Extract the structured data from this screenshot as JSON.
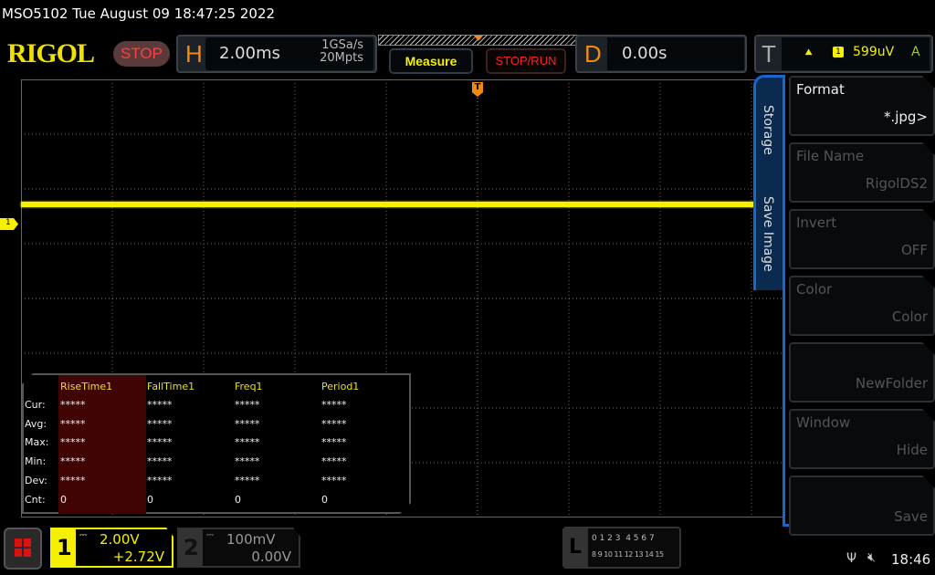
{
  "title": "MSO5102  Tue August 09 18:47:25 2022",
  "logo": "RIGOL",
  "run_state": "STOP",
  "horizontal": {
    "letter": "H",
    "timebase": "2.00ms",
    "sample_rate": "1GSa/s",
    "memory_depth": "20Mpts"
  },
  "buttons": {
    "measure": "Measure",
    "stop_run": "STOP/RUN"
  },
  "delay": {
    "letter": "D",
    "value": "0.00s"
  },
  "trigger": {
    "letter": "T",
    "slope": "rising",
    "slope_glyph": "⯅",
    "source": "1",
    "level": "599uV",
    "mode": "A"
  },
  "markers": {
    "trigger": "T",
    "ch1": "1"
  },
  "measure_table": {
    "headers": [
      "RiseTime1",
      "FallTime1",
      "Freq1",
      "Period1"
    ],
    "rows": [
      {
        "label": "Cur:",
        "values": [
          "*****",
          "*****",
          "*****",
          "*****"
        ]
      },
      {
        "label": "Avg:",
        "values": [
          "*****",
          "*****",
          "*****",
          "*****"
        ]
      },
      {
        "label": "Max:",
        "values": [
          "*****",
          "*****",
          "*****",
          "*****"
        ]
      },
      {
        "label": "Min:",
        "values": [
          "*****",
          "*****",
          "*****",
          "*****"
        ]
      },
      {
        "label": "Dev:",
        "values": [
          "*****",
          "*****",
          "*****",
          "*****"
        ]
      },
      {
        "label": "Cnt:",
        "values": [
          "0",
          "0",
          "0",
          "0"
        ]
      }
    ]
  },
  "side_tabs": [
    "Storage",
    "Save Image"
  ],
  "menu": [
    {
      "label": "Format",
      "value": "*.jpg>",
      "enabled": true
    },
    {
      "label": "File Name",
      "value": "RigolDS2",
      "enabled": false
    },
    {
      "label": "Invert",
      "value": "OFF",
      "enabled": false
    },
    {
      "label": "Color",
      "value": "Color",
      "enabled": false
    },
    {
      "label": "",
      "value": "NewFolder",
      "enabled": false
    },
    {
      "label": "Window",
      "value": "Hide",
      "enabled": false
    },
    {
      "label": "",
      "value": "Save",
      "enabled": false
    }
  ],
  "channels": [
    {
      "num": "1",
      "scale": "2.00V",
      "offset": "+2.72V",
      "color": "#f5f000",
      "active": true
    },
    {
      "num": "2",
      "scale": "100mV",
      "offset": "0.00V",
      "color": "#888888",
      "active": false
    }
  ],
  "logic": {
    "letter": "L",
    "row1": "0 1 2 3  4 5 6 7",
    "row2": "8 9 10 11 12 13 14 15"
  },
  "status": {
    "clock": "18:46",
    "usb": "usb-icon",
    "sound": "muted"
  },
  "colors": {
    "ch1": "#f5f000",
    "trigger": "#f08a10",
    "menu_border": "#1a66d0"
  }
}
